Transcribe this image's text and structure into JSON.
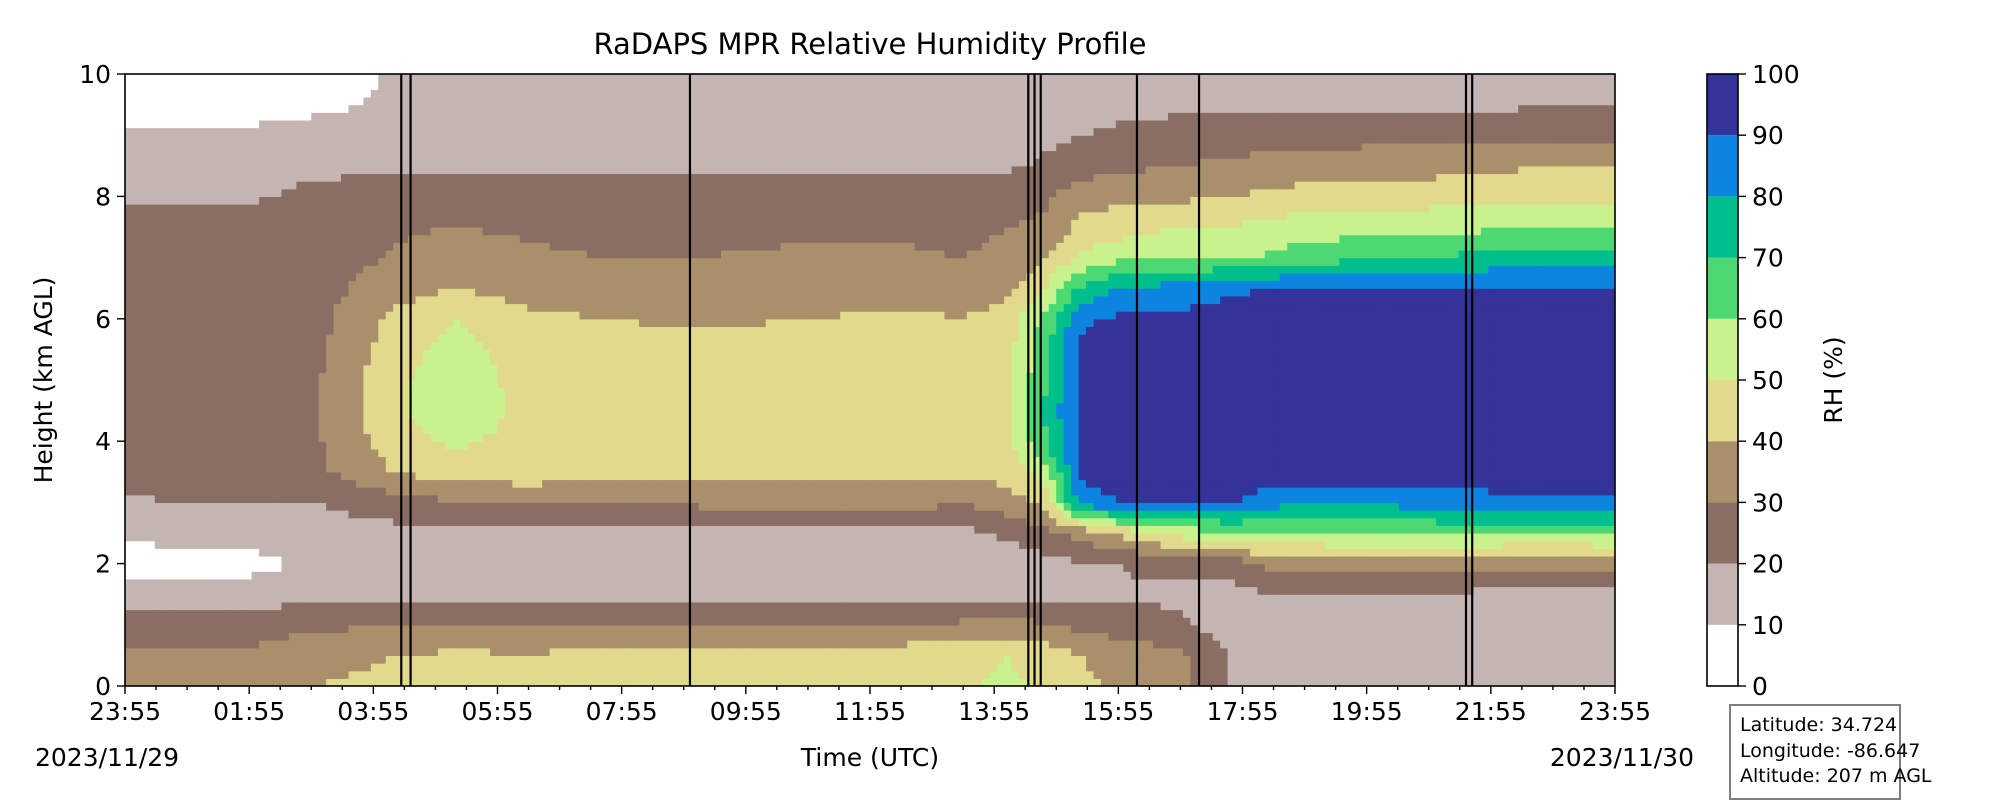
{
  "chart_data": {
    "type": "heatmap",
    "title": "RaDAPS MPR Relative Humidity Profile",
    "xlabel": "Time (UTC)",
    "ylabel": "Height (km AGL)",
    "xlim": [
      "2023-11-29 23:55",
      "2023-11-30 23:55"
    ],
    "ylim": [
      0,
      10
    ],
    "x_tick_labels": [
      "23:55",
      "01:55",
      "03:55",
      "05:55",
      "07:55",
      "09:55",
      "11:55",
      "13:55",
      "15:55",
      "17:55",
      "19:55",
      "21:55",
      "23:55"
    ],
    "x_date_labels": {
      "start": "2023/11/29",
      "end": "2023/11/30"
    },
    "y_ticks": [
      0,
      2,
      4,
      6,
      8,
      10
    ],
    "colorbar": {
      "label": "RH (%)",
      "levels": [
        0,
        10,
        20,
        30,
        40,
        50,
        60,
        70,
        80,
        90,
        100
      ],
      "colors": [
        "#ffffff",
        "#c4b5b3",
        "#8b6e63",
        "#a9906a",
        "#e1d98b",
        "#c9f28d",
        "#4cd973",
        "#00bf8c",
        "#0d84e0",
        "#333399"
      ]
    },
    "time_hours_since_2355": [
      0,
      2,
      3.1,
      4.4,
      5.3,
      6.5,
      7.7,
      9.2,
      11,
      12.5,
      13.5,
      14.2,
      14.8,
      15.4,
      16,
      17,
      17.8,
      18.3,
      19,
      20.3,
      21.7,
      22.5,
      24
    ],
    "heights_km": [
      0,
      0.5,
      1,
      1.5,
      2,
      2.5,
      3,
      3.5,
      4,
      4.5,
      5,
      5.5,
      6,
      6.5,
      7,
      7.5,
      8,
      8.5,
      9,
      9.5,
      10
    ],
    "rh_percent": [
      [
        34,
        35,
        40,
        42,
        44,
        44,
        46,
        45,
        46,
        47,
        49,
        52,
        48,
        42,
        38,
        34,
        20,
        19,
        18,
        17,
        17,
        16,
        15
      ],
      [
        31,
        32,
        38,
        40,
        42,
        41,
        43,
        42,
        43,
        45,
        47,
        50,
        46,
        40,
        36,
        32,
        19,
        18,
        17,
        17,
        16,
        15,
        15
      ],
      [
        24,
        25,
        28,
        30,
        30,
        29,
        30,
        29,
        29,
        31,
        32,
        34,
        31,
        27,
        25,
        22,
        15,
        15,
        15,
        14,
        14,
        14,
        14
      ],
      [
        14,
        14,
        18,
        17,
        16,
        15,
        15,
        15,
        16,
        17,
        16,
        17,
        18,
        19,
        19,
        18,
        17,
        19,
        20,
        20,
        18,
        18,
        18
      ],
      [
        6,
        7,
        12,
        13,
        11,
        10,
        11,
        12,
        12,
        13,
        11,
        11,
        17,
        19,
        20,
        23,
        24,
        31,
        35,
        36,
        34,
        32,
        32
      ],
      [
        12,
        13,
        15,
        17,
        16,
        16,
        17,
        16,
        17,
        18,
        17,
        22,
        27,
        33,
        42,
        54,
        58,
        58,
        58,
        62,
        61,
        60,
        61
      ],
      [
        19,
        20,
        20,
        26,
        29,
        31,
        31,
        32,
        32,
        33,
        31,
        35,
        43,
        85,
        90,
        90,
        92,
        85,
        80,
        82,
        86,
        87,
        87
      ],
      [
        25,
        26,
        28,
        41,
        44,
        46,
        43,
        42,
        43,
        44,
        42,
        44,
        55,
        92,
        94,
        94,
        96,
        96,
        96,
        96,
        96,
        96,
        96
      ],
      [
        22,
        23,
        29,
        46,
        52,
        46,
        44,
        43,
        43,
        45,
        43,
        46,
        68,
        94,
        95,
        95,
        96,
        96,
        96,
        96,
        96,
        96,
        96
      ],
      [
        21,
        21,
        29,
        49,
        58,
        47,
        45,
        44,
        44,
        47,
        44,
        48,
        70,
        94,
        95,
        95,
        96,
        96,
        96,
        96,
        96,
        96,
        96
      ],
      [
        24,
        25,
        29,
        48,
        56,
        46,
        44,
        43,
        44,
        46,
        43,
        47,
        68,
        93,
        95,
        95,
        96,
        96,
        96,
        96,
        96,
        96,
        96
      ],
      [
        24,
        24,
        28,
        46,
        54,
        45,
        43,
        42,
        43,
        45,
        42,
        46,
        66,
        93,
        95,
        95,
        96,
        96,
        96,
        96,
        96,
        96,
        96
      ],
      [
        20,
        21,
        27,
        43,
        50,
        42,
        40,
        39,
        40,
        42,
        40,
        44,
        62,
        88,
        92,
        93,
        95,
        95,
        95,
        95,
        95,
        95,
        95
      ],
      [
        26,
        27,
        26,
        36,
        40,
        36,
        35,
        34,
        35,
        36,
        35,
        37,
        50,
        72,
        80,
        84,
        88,
        90,
        91,
        92,
        92,
        92,
        92
      ],
      [
        27,
        28,
        26,
        31,
        34,
        31,
        30,
        30,
        31,
        31,
        30,
        32,
        39,
        52,
        58,
        60,
        60,
        61,
        65,
        70,
        72,
        74,
        74
      ],
      [
        26,
        26,
        25,
        29,
        30,
        29,
        28,
        28,
        29,
        29,
        28,
        30,
        32,
        43,
        45,
        50,
        51,
        52,
        55,
        57,
        58,
        60,
        60
      ],
      [
        18,
        18,
        24,
        26,
        26,
        25,
        25,
        25,
        26,
        26,
        25,
        26,
        28,
        35,
        38,
        38,
        40,
        42,
        44,
        45,
        46,
        48,
        48
      ],
      [
        15,
        15,
        17,
        18,
        18,
        18,
        17,
        17,
        18,
        18,
        18,
        19,
        21,
        26,
        28,
        30,
        32,
        33,
        34,
        36,
        37,
        39,
        39
      ],
      [
        13,
        13,
        16,
        17,
        17,
        16,
        16,
        16,
        17,
        17,
        17,
        18,
        18,
        20,
        22,
        24,
        25,
        26,
        26,
        27,
        27,
        28,
        28
      ],
      [
        3,
        4,
        7,
        13,
        14,
        15,
        14,
        14,
        15,
        15,
        15,
        16,
        16,
        16,
        17,
        18,
        18,
        18,
        18,
        18,
        18,
        19,
        19
      ],
      [
        2,
        3,
        5,
        11,
        12,
        13,
        12,
        12,
        13,
        13,
        13,
        13,
        13,
        13,
        14,
        14,
        15,
        15,
        15,
        15,
        15,
        15,
        15
      ]
    ],
    "spikes_hours": [
      4.45,
      4.6,
      9.1,
      14.55,
      14.65,
      14.75,
      16.3,
      17.3,
      21.6,
      21.7
    ],
    "grid": false,
    "legend": "colorbar-right"
  },
  "info": {
    "latitude": "Latitude: 34.724",
    "longitude": "Longitude: -86.647",
    "altitude": "Altitude: 207 m AGL"
  }
}
